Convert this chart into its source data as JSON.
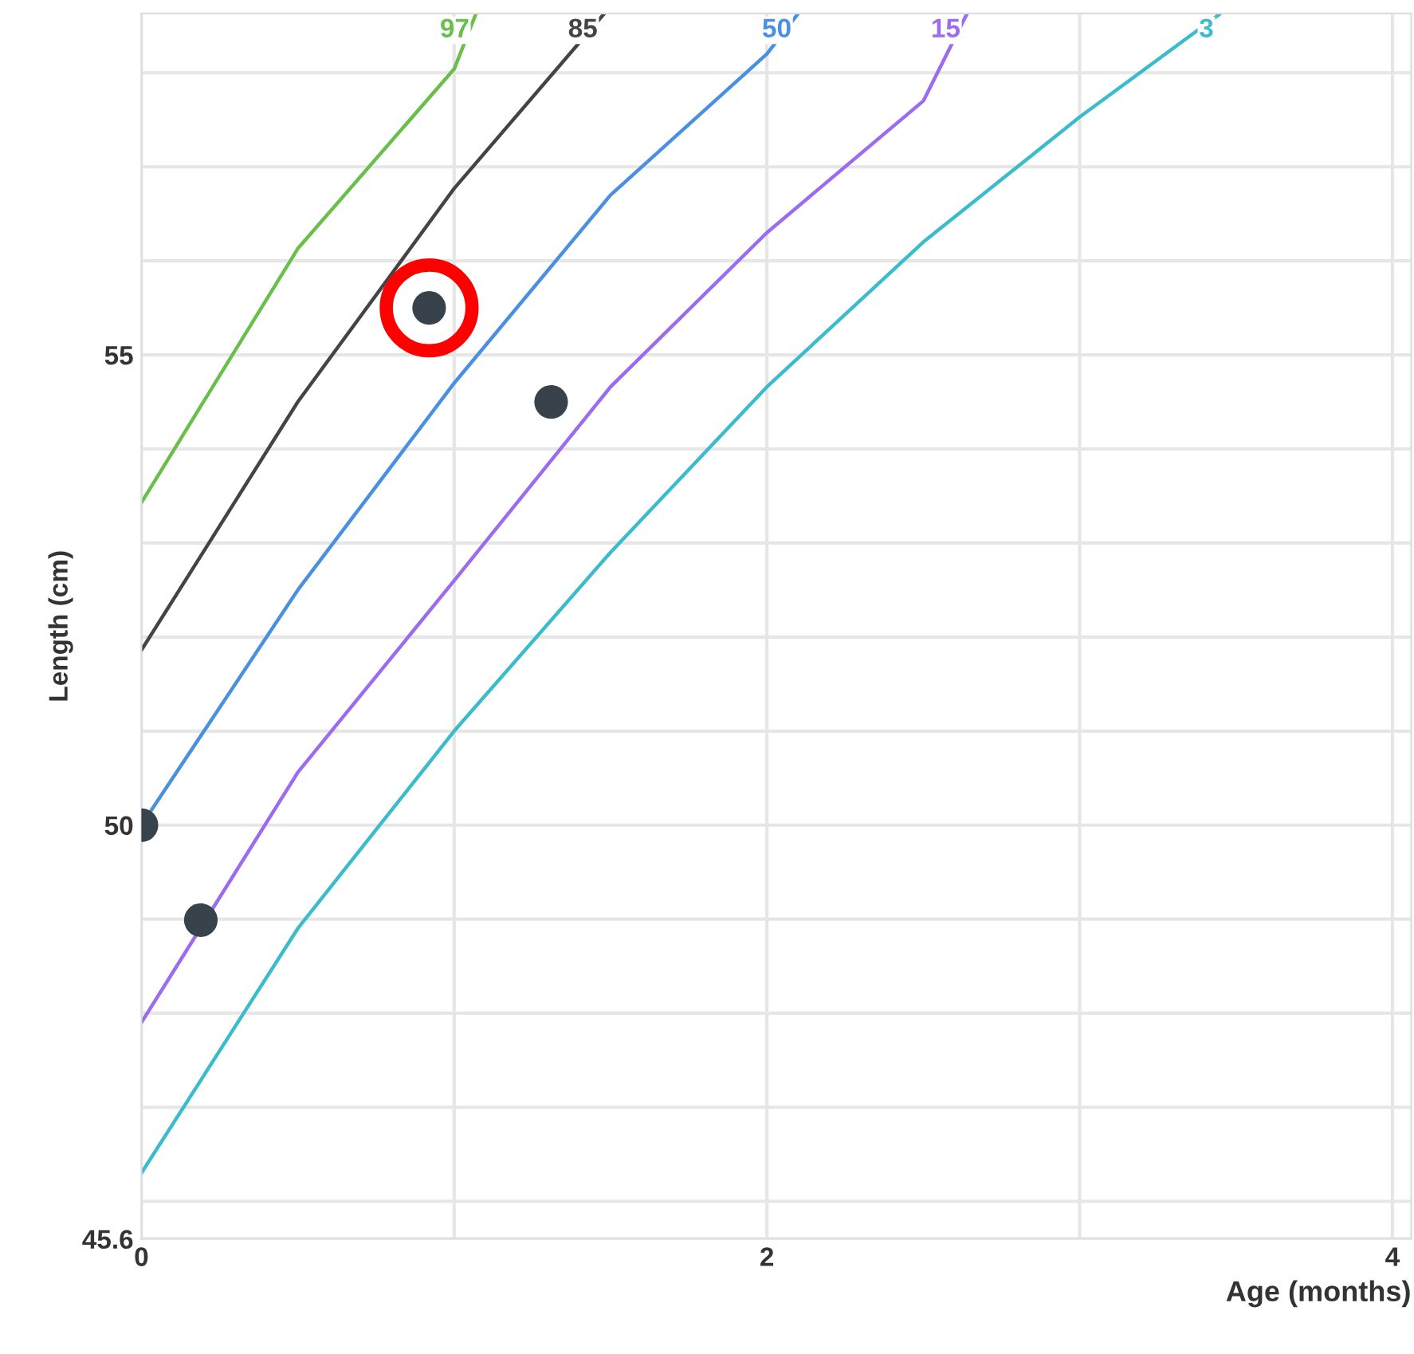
{
  "chart_data": {
    "type": "line",
    "xlabel": "Age (months)",
    "ylabel": "Length (cm)",
    "xlim": [
      0,
      4.06
    ],
    "ylim": [
      45.6,
      58.63
    ],
    "xticks": [
      0,
      {
        "value": 1,
        "label": null
      },
      2,
      {
        "value": 3,
        "label": null
      },
      4
    ],
    "yticks": [
      45.6,
      {
        "value": 46,
        "label": null
      },
      {
        "value": 47,
        "label": null
      },
      {
        "value": 48,
        "label": null
      },
      {
        "value": 49,
        "label": null
      },
      50,
      {
        "value": 51,
        "label": null
      },
      {
        "value": 52,
        "label": null
      },
      {
        "value": 53,
        "label": null
      },
      {
        "value": 54,
        "label": null
      },
      55,
      {
        "value": 56,
        "label": null
      },
      {
        "value": 57,
        "label": null
      },
      {
        "value": 58,
        "label": null
      }
    ],
    "grid": true,
    "legend": false,
    "series": [
      {
        "name": "97",
        "color": "#6abf4b",
        "x": [
          0,
          0.5,
          1,
          1.07
        ],
        "values": [
          53.43,
          56.13,
          58.04,
          58.63
        ]
      },
      {
        "name": "85",
        "color": "#444444",
        "x": [
          0,
          0.5,
          1,
          1.48
        ],
        "values": [
          51.86,
          54.5,
          56.77,
          58.63
        ]
      },
      {
        "name": "50",
        "color": "#4a90e2",
        "x": [
          0,
          0.5,
          1,
          1.5,
          2,
          2.1
        ],
        "values": [
          50,
          52.5,
          54.7,
          56.7,
          58.2,
          58.63
        ]
      },
      {
        "name": "15",
        "color": "#9b6cf0",
        "x": [
          0,
          0.5,
          1,
          1.5,
          2,
          2.5,
          2.64
        ],
        "values": [
          47.9,
          50.56,
          52.6,
          54.66,
          56.3,
          57.7,
          58.63
        ]
      },
      {
        "name": "3",
        "color": "#3bbccc",
        "x": [
          0,
          0.5,
          1,
          1.5,
          2,
          2.5,
          3,
          3.45
        ],
        "values": [
          46.3,
          48.9,
          51.0,
          52.9,
          54.66,
          56.2,
          57.53,
          58.63
        ]
      },
      {
        "type": "scatter",
        "color": "#37424a",
        "x": [
          0,
          0.19,
          0.92,
          1.31
        ],
        "values": [
          50,
          48.99,
          55.5,
          54.5
        ]
      },
      {
        "type": "scatter",
        "color": "#ff0000",
        "marker": "circle",
        "x": [
          0.92
        ],
        "values": [
          55.5
        ]
      }
    ]
  }
}
